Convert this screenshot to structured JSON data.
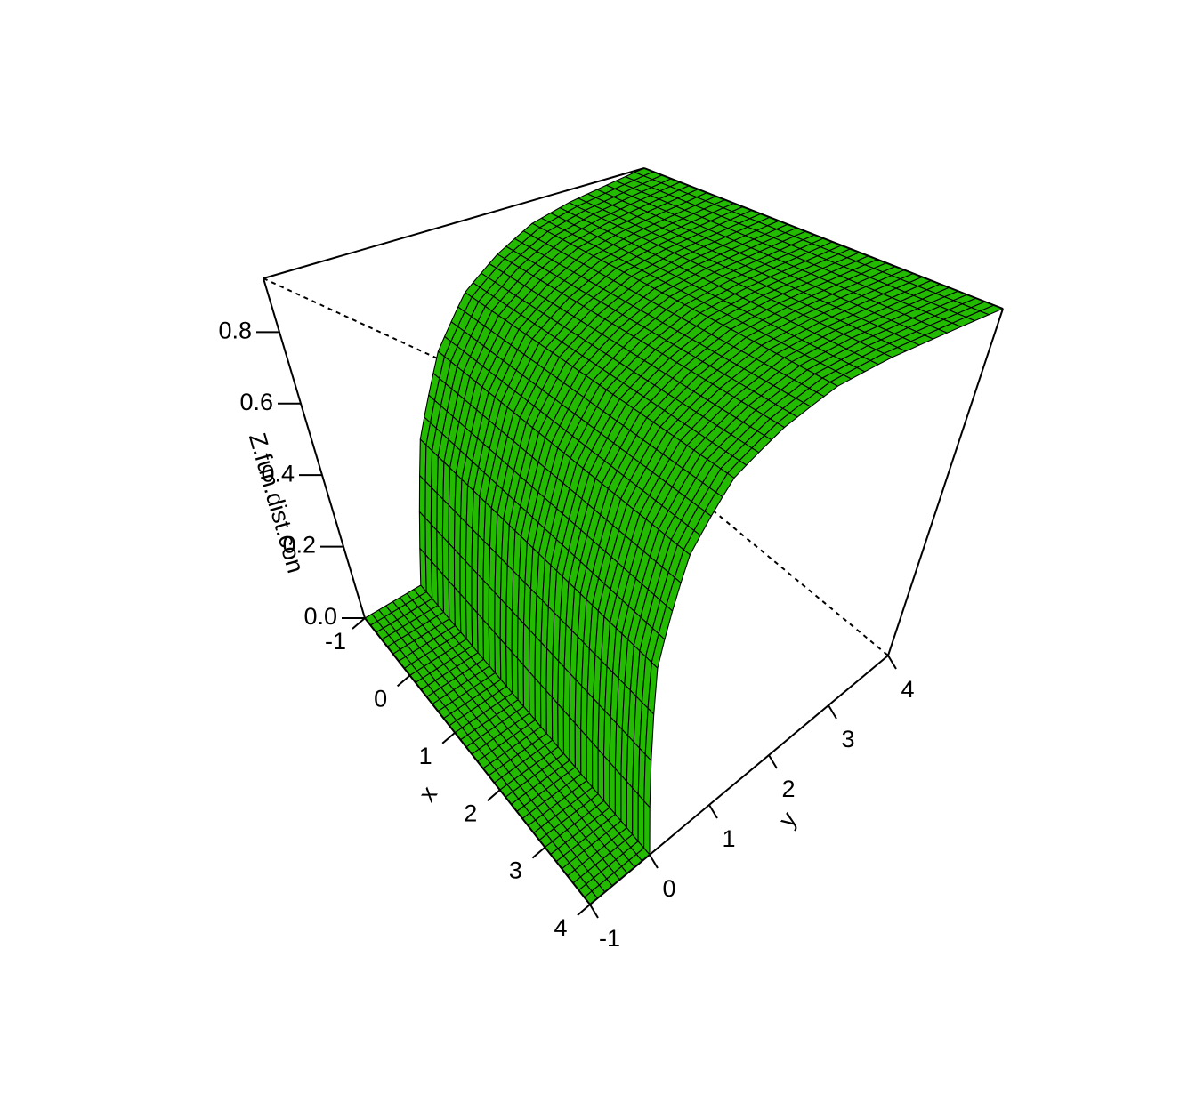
{
  "chart_data": {
    "type": "surface3d",
    "surface_description": "bivariate CDF-like surface over x and y; z = 0 where y <= 0, rising toward ~0.95 as y -> 4 (nearly independent of x)",
    "xlabel": "x",
    "ylabel": "y",
    "zlabel": "Z.fun.dist.con",
    "xlim": [
      -1,
      4
    ],
    "ylim": [
      -1,
      4
    ],
    "zlim": [
      0,
      0.95
    ],
    "x_ticks": [
      "-1",
      "0",
      "1",
      "2",
      "3",
      "4"
    ],
    "y_ticks": [
      "-1",
      "0",
      "1",
      "2",
      "3",
      "4"
    ],
    "z_ticks": [
      "0.0",
      "0.2",
      "0.4",
      "0.6",
      "0.8"
    ],
    "sample_values": {
      "y": [
        -1,
        0,
        0.5,
        1,
        1.5,
        2,
        2.5,
        3,
        3.5,
        4
      ],
      "z": [
        0,
        0,
        0.38,
        0.6,
        0.74,
        0.82,
        0.88,
        0.91,
        0.93,
        0.95
      ]
    },
    "surface_color": "#22bb00",
    "mesh_color": "#000000",
    "box": true
  }
}
